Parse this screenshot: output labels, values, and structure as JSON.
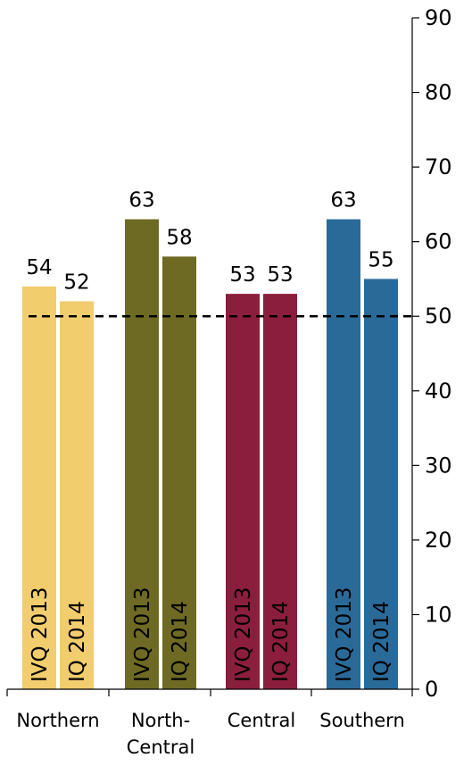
{
  "chart_data": {
    "type": "bar",
    "title": "",
    "xlabel": "",
    "ylabel": "",
    "categories": [
      {
        "lines": [
          "Northern"
        ]
      },
      {
        "lines": [
          "North-",
          "Central"
        ]
      },
      {
        "lines": [
          "Central"
        ]
      },
      {
        "lines": [
          "Southern"
        ]
      }
    ],
    "series": [
      {
        "name": "IVQ  2013",
        "values": [
          54,
          63,
          53,
          63
        ],
        "colors": [
          "#F2CD6E",
          "#6E6A24",
          "#8B1E3C",
          "#2A6A99"
        ]
      },
      {
        "name": "IQ  2014",
        "values": [
          52,
          58,
          53,
          55
        ],
        "colors": [
          "#F2CD6E",
          "#6E6A24",
          "#8B1E3C",
          "#2A6A99"
        ]
      }
    ],
    "value_labels": [
      [
        "54",
        "63",
        "53",
        "63"
      ],
      [
        "52",
        "58",
        "53",
        "55"
      ]
    ],
    "reference_line": {
      "value": 50,
      "style": "dashed",
      "color": "#000000"
    },
    "ylim": [
      0,
      90
    ],
    "yticks": [
      0,
      10,
      20,
      30,
      40,
      50,
      60,
      70,
      80,
      90
    ],
    "y_axis_side": "right",
    "grid": false,
    "legend": "none"
  }
}
